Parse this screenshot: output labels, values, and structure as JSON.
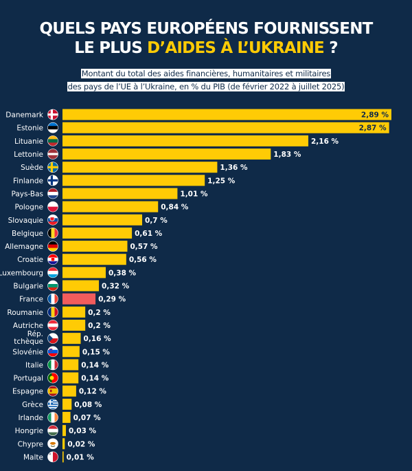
{
  "header": {
    "title_line1": "QUELS PAYS EUROPÉENS FOURNISSENT",
    "title_line2_prefix": "LE PLUS ",
    "title_line2_highlight": "D’AIDES À L’UKRAINE",
    "title_line2_suffix": " ?",
    "subtitle_line1": "Montant du total des aides financières, humanitaires et militaires",
    "subtitle_line2": "des pays de l’UE à l’Ukraine, en % du PIB (de février 2022 à juillet 2025)"
  },
  "colors": {
    "background": "#0f2a48",
    "bar": "#ffcb05",
    "highlight_bar": "#f25c5c",
    "title_highlight": "#ffcb05"
  },
  "chart_data": {
    "type": "bar",
    "orientation": "horizontal",
    "unit": "%",
    "xlim": [
      0,
      2.89
    ],
    "categories": [
      "Danemark",
      "Estonie",
      "Lituanie",
      "Lettonie",
      "Suède",
      "Finlande",
      "Pays-Bas",
      "Pologne",
      "Slovaquie",
      "Belgique",
      "Allemagne",
      "Croatie",
      "Luxembourg",
      "Bulgarie",
      "France",
      "Roumanie",
      "Autriche",
      "Rép. tchèque",
      "Slovénie",
      "Italie",
      "Portugal",
      "Espagne",
      "Grèce",
      "Irlande",
      "Hongrie",
      "Chypre",
      "Malte"
    ],
    "values": [
      2.89,
      2.87,
      2.16,
      1.83,
      1.36,
      1.25,
      1.01,
      0.84,
      0.7,
      0.61,
      0.57,
      0.56,
      0.38,
      0.32,
      0.29,
      0.2,
      0.2,
      0.16,
      0.15,
      0.14,
      0.14,
      0.12,
      0.08,
      0.07,
      0.03,
      0.02,
      0.01
    ],
    "value_labels": [
      "2,89 %",
      "2,87 %",
      "2,16 %",
      "1,83 %",
      "1,36 %",
      "1,25 %",
      "1,01 %",
      "0,84 %",
      "0,7 %",
      "0,61 %",
      "0,57 %",
      "0,56 %",
      "0,38 %",
      "0,32 %",
      "0,29 %",
      "0,2 %",
      "0,2 %",
      "0,16 %",
      "0,15 %",
      "0,14 %",
      "0,14 %",
      "0,12 %",
      "0,08 %",
      "0,07 %",
      "0,03 %",
      "0,02 %",
      "0,01 %"
    ],
    "flags": [
      "flag-denmark-icon",
      "flag-estonia-icon",
      "flag-lithuania-icon",
      "flag-latvia-icon",
      "flag-sweden-icon",
      "flag-finland-icon",
      "flag-netherlands-icon",
      "flag-poland-icon",
      "flag-slovakia-icon",
      "flag-belgium-icon",
      "flag-germany-icon",
      "flag-croatia-icon",
      "flag-luxembourg-icon",
      "flag-bulgaria-icon",
      "flag-france-icon",
      "flag-romania-icon",
      "flag-austria-icon",
      "flag-czechia-icon",
      "flag-slovenia-icon",
      "flag-italy-icon",
      "flag-portugal-icon",
      "flag-spain-icon",
      "flag-greece-icon",
      "flag-ireland-icon",
      "flag-hungary-icon",
      "flag-cyprus-icon",
      "flag-malta-icon"
    ],
    "highlighted_category": "France"
  }
}
